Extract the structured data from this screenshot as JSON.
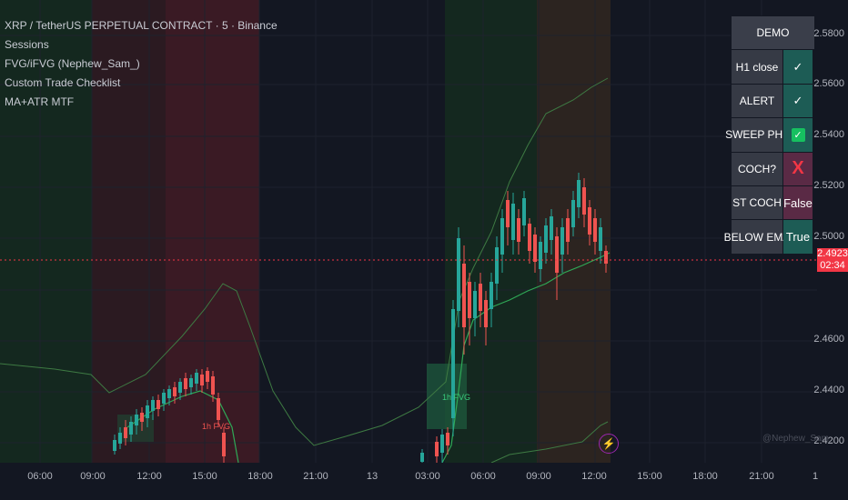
{
  "legend": {
    "symbol": "XRP / TetherUS PERPETUAL CONTRACT · 5 · Binance",
    "indicators": [
      "Sessions",
      "FVG/iFVG (Nephew_Sam_)",
      "Custom Trade Checklist",
      "MA+ATR MTF"
    ]
  },
  "checklist": {
    "header": "DEMO",
    "rows": [
      {
        "label": "H1 close",
        "value": "✓",
        "style": "teal"
      },
      {
        "label": "ALERT",
        "value": "✓",
        "style": "teal"
      },
      {
        "label": "SWEEP PHL",
        "value": "✓",
        "style": "box"
      },
      {
        "label": "COCH?",
        "value": "X",
        "style": "x"
      },
      {
        "label": "ST COCH",
        "value": "False",
        "style": "red"
      },
      {
        "label": "BELOW EMA",
        "value": "True",
        "style": "green"
      }
    ]
  },
  "price_axis": {
    "ticks": [
      "2.5800",
      "2.5600",
      "2.5400",
      "2.5200",
      "2.5000",
      "2.4600",
      "2.4400",
      "2.4200"
    ],
    "current_price": "2.4923",
    "countdown": "02:34"
  },
  "time_axis": {
    "ticks": [
      "06:00",
      "09:00",
      "12:00",
      "15:00",
      "18:00",
      "21:00",
      "13",
      "03:00",
      "06:00",
      "09:00",
      "12:00",
      "15:00",
      "18:00",
      "21:00",
      "1"
    ]
  },
  "fvg_labels": [
    "1h FVG",
    "1h FVG"
  ],
  "watermark": "@Nephew_Sam_",
  "icons": {
    "replay": "flash-icon"
  },
  "colors": {
    "background": "#131722",
    "session_green": "#143225",
    "session_red": "#3a1b25",
    "session_orange": "#2f2520",
    "bull": "#26a69a",
    "bear": "#ef5350",
    "ma": "#3f8a46",
    "price_line": "#f23645"
  }
}
